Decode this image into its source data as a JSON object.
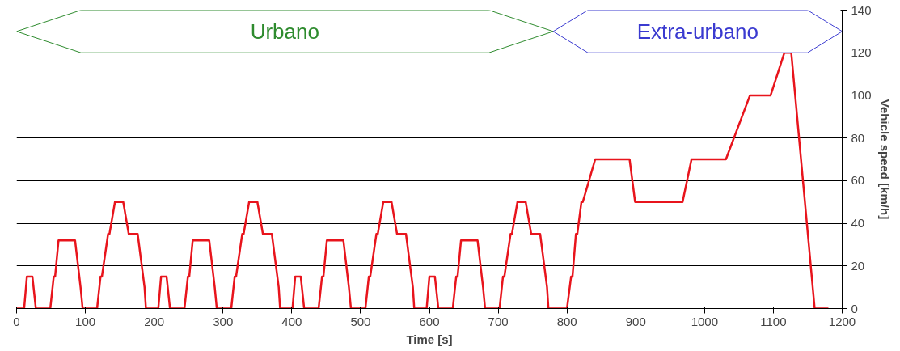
{
  "chart_data": {
    "type": "line",
    "xlabel": "Time [s]",
    "ylabel": "Vehicle speed [km/h]",
    "x": [
      0,
      11,
      15,
      23,
      28,
      49,
      54,
      56,
      61,
      85,
      93,
      96,
      117,
      122,
      124,
      133,
      135,
      143,
      155,
      163,
      176,
      186,
      188,
      195,
      206,
      210,
      218,
      223,
      244,
      249,
      251,
      256,
      280,
      288,
      291,
      312,
      317,
      319,
      328,
      330,
      338,
      350,
      358,
      371,
      381,
      383,
      390,
      401,
      405,
      413,
      418,
      439,
      444,
      446,
      451,
      475,
      483,
      486,
      507,
      512,
      514,
      523,
      525,
      533,
      545,
      553,
      566,
      576,
      578,
      585,
      596,
      600,
      608,
      613,
      634,
      639,
      641,
      646,
      670,
      678,
      681,
      702,
      707,
      709,
      718,
      720,
      728,
      740,
      748,
      761,
      771,
      773,
      780,
      800,
      806,
      808,
      813,
      815,
      821,
      823,
      841,
      891,
      899,
      968,
      981,
      1031,
      1066,
      1096,
      1116,
      1126,
      1160,
      1180
    ],
    "series": [
      {
        "color": "#e8141c",
        "values": [
          0,
          0,
          15,
          15,
          0,
          0,
          15,
          15,
          32,
          32,
          10,
          0,
          0,
          15,
          15,
          35,
          35,
          50,
          50,
          35,
          35,
          10,
          0,
          0,
          0,
          15,
          15,
          0,
          0,
          15,
          15,
          32,
          32,
          10,
          0,
          0,
          15,
          15,
          35,
          35,
          50,
          50,
          35,
          35,
          10,
          0,
          0,
          0,
          15,
          15,
          0,
          0,
          15,
          15,
          32,
          32,
          10,
          0,
          0,
          15,
          15,
          35,
          35,
          50,
          50,
          35,
          35,
          10,
          0,
          0,
          0,
          15,
          15,
          0,
          0,
          15,
          15,
          32,
          32,
          10,
          0,
          0,
          15,
          15,
          35,
          35,
          50,
          50,
          35,
          35,
          10,
          0,
          0,
          0,
          15,
          15,
          35,
          35,
          50,
          50,
          70,
          70,
          50,
          50,
          70,
          70,
          100,
          100,
          120,
          120,
          0,
          0
        ]
      }
    ],
    "xlim": [
      0,
      1200
    ],
    "xticks": [
      0,
      100,
      200,
      300,
      400,
      500,
      600,
      700,
      800,
      900,
      1000,
      1100,
      1200
    ],
    "ylim": [
      0,
      140
    ],
    "yticks": [
      0,
      20,
      40,
      60,
      80,
      100,
      120,
      140
    ],
    "grid": "y",
    "line_style": "solid",
    "marker": "none",
    "bands": [
      {
        "axis": "x",
        "from": 0,
        "to": 780,
        "label": "Urbano",
        "color": "#2e8b2e"
      },
      {
        "axis": "x",
        "from": 780,
        "to": 1200,
        "label": "Extra-urbano",
        "color": "#3a3ad0"
      }
    ]
  }
}
